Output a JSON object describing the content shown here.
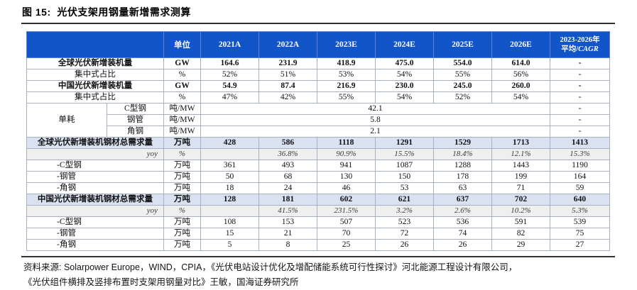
{
  "figure": {
    "title": "图 15:  光伏支架用钢量新增需求测算"
  },
  "colors": {
    "header_bg": "#1155C8",
    "header_text": "#FFFFFF",
    "subtotal_row_bg": "#DAE2F2",
    "yoy_row_bg": "#EFEFEF",
    "grid_line": "#A7B0C4"
  },
  "table": {
    "header": {
      "unit": "单位",
      "years": [
        "2021A",
        "2022A",
        "2023E",
        "2024E",
        "2025E",
        "2026E"
      ],
      "cagr_line1": "2023-2026年",
      "cagr_prefix": "平均/",
      "cagr_italic": "CAGR"
    },
    "rows": [
      {
        "style": "bold",
        "label": "全球光伏新增装机量",
        "unit": "GW",
        "values": [
          "164.6",
          "231.9",
          "418.9",
          "475.0",
          "554.0",
          "614.0"
        ],
        "last": "-"
      },
      {
        "style": "plain",
        "label": "集中式占比",
        "unit": "%",
        "values": [
          "52%",
          "51%",
          "53%",
          "54%",
          "55%",
          "56%"
        ],
        "last": "-"
      },
      {
        "style": "bold",
        "label": "中国光伏新增装机量",
        "unit": "GW",
        "values": [
          "54.9",
          "87.4",
          "216.9",
          "230.0",
          "245.0",
          "260.0"
        ],
        "last": "-"
      },
      {
        "style": "plain",
        "label": "集中式占比",
        "unit": "%",
        "values": [
          "47%",
          "42%",
          "55%",
          "54%",
          "52%",
          "54%"
        ],
        "last": "-"
      },
      {
        "style": "group-first",
        "group": "单耗",
        "label": "C型钢",
        "unit": "吨/MW",
        "merged": "42.1",
        "last": "-"
      },
      {
        "style": "group",
        "label": "钢管",
        "unit": "吨/MW",
        "merged": "5.8",
        "last": "-"
      },
      {
        "style": "group",
        "label": "角钢",
        "unit": "吨/MW",
        "merged": "2.1",
        "last": "-"
      },
      {
        "style": "subtotal",
        "label": "全球光伏新增装机钢材总需求量",
        "unit": "万吨",
        "values": [
          "428",
          "586",
          "1118",
          "1291",
          "1529",
          "1713"
        ],
        "last": "1413"
      },
      {
        "style": "yoy",
        "label": "yoy",
        "unit": "%",
        "values": [
          "",
          "36.8%",
          "90.9%",
          "15.5%",
          "18.4%",
          "12.1%"
        ],
        "last": "15.3%"
      },
      {
        "style": "indent",
        "label": "-C型钢",
        "unit": "万吨",
        "values": [
          "361",
          "493",
          "941",
          "1087",
          "1288",
          "1443"
        ],
        "last": "1190"
      },
      {
        "style": "indent",
        "label": "-钢管",
        "unit": "万吨",
        "values": [
          "50",
          "68",
          "130",
          "150",
          "178",
          "199"
        ],
        "last": "164"
      },
      {
        "style": "indent",
        "label": "-角钢",
        "unit": "万吨",
        "values": [
          "18",
          "24",
          "46",
          "53",
          "63",
          "71"
        ],
        "last": "59"
      },
      {
        "style": "subtotal",
        "label": "中国光伏新增装机钢材总需求量",
        "unit": "万吨",
        "values": [
          "128",
          "181",
          "602",
          "621",
          "637",
          "702"
        ],
        "last": "640"
      },
      {
        "style": "yoy",
        "label": "yoy",
        "unit": "%",
        "values": [
          "",
          "41.5%",
          "231.5%",
          "3.2%",
          "2.6%",
          "10.2%"
        ],
        "last": "5.3%"
      },
      {
        "style": "indent",
        "label": "-C型钢",
        "unit": "万吨",
        "values": [
          "108",
          "153",
          "507",
          "523",
          "536",
          "591"
        ],
        "last": "539"
      },
      {
        "style": "indent",
        "label": "-钢管",
        "unit": "万吨",
        "values": [
          "15",
          "21",
          "70",
          "72",
          "74",
          "82"
        ],
        "last": "75"
      },
      {
        "style": "indent",
        "label": "-角钢",
        "unit": "万吨",
        "values": [
          "5",
          "8",
          "25",
          "26",
          "26",
          "29"
        ],
        "last": "27"
      }
    ]
  },
  "footer": {
    "line1": "资料来源: Solarpower Europe，WIND，CPIA，《光伏电站设计优化及增配储能系统可行性探讨》河北能源工程设计有限公司，",
    "line2": "《光伏组件横排及竖排布置时支架用钢量对比》王敏，国海证券研究所"
  }
}
